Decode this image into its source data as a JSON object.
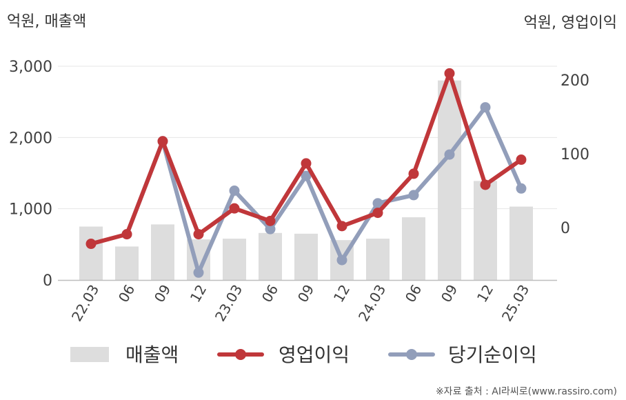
{
  "chart_data": {
    "type": "bar+line",
    "left_unit_label": "억원, 매출액",
    "right_unit_label": "억원, 영업이익",
    "categories": [
      "22.03",
      "06",
      "09",
      "12",
      "23.03",
      "06",
      "09",
      "12",
      "24.03",
      "06",
      "09",
      "12",
      "25.03"
    ],
    "left_axis": {
      "ylim": [
        0,
        3000
      ],
      "ticks": [
        0,
        1000,
        2000,
        3000
      ],
      "tick_labels": [
        "0",
        "1,000",
        "2,000",
        "3,000"
      ]
    },
    "right_axis": {
      "ylim": [
        -72,
        220
      ],
      "ticks": [
        0,
        100,
        200
      ],
      "tick_labels": [
        "0",
        "100",
        "200"
      ]
    },
    "grid": true,
    "legend_position": "bottom",
    "series": [
      {
        "name": "매출액",
        "kind": "bar",
        "axis": "left",
        "color": "#dddddd",
        "values": [
          750,
          470,
          780,
          570,
          580,
          660,
          650,
          560,
          580,
          880,
          2800,
          1390,
          1030
        ]
      },
      {
        "name": "영업이익",
        "kind": "line",
        "axis": "right",
        "color": "#c0373a",
        "values": [
          -22,
          -9,
          117,
          -9,
          26,
          9,
          87,
          2,
          20,
          73,
          209,
          58,
          92
        ]
      },
      {
        "name": "당기순이익",
        "kind": "line",
        "axis": "right",
        "color": "#929eba",
        "values": [
          null,
          -9,
          117,
          -61,
          50,
          -2,
          70,
          -44,
          33,
          44,
          99,
          163,
          53
        ]
      }
    ],
    "source": "※자료 출처 : AI라씨로(www.rassiro.com)"
  }
}
